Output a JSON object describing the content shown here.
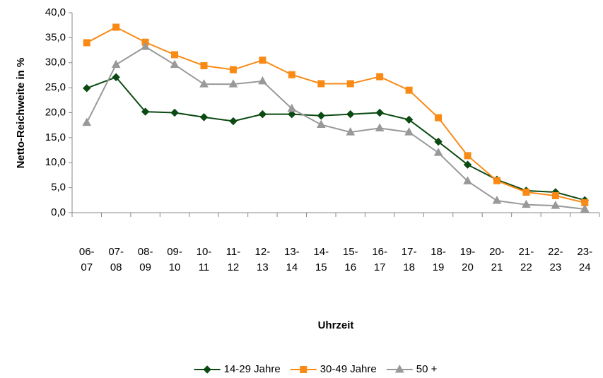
{
  "chart_data": {
    "type": "line",
    "x_label": "Uhrzeit",
    "y_label": "Netto-Reichweite in %",
    "categories": [
      "06-07",
      "07-08",
      "08-09",
      "09-10",
      "10-11",
      "11-12",
      "12-13",
      "13-14",
      "14-15",
      "15-16",
      "16-17",
      "17-18",
      "18-19",
      "19-20",
      "20-21",
      "21-22",
      "22-23",
      "23-24"
    ],
    "series": [
      {
        "name": "14-29 Jahre",
        "color": "#0b4a12",
        "marker": "diamond",
        "values": [
          24.9,
          27.1,
          20.2,
          20.0,
          19.1,
          18.3,
          19.7,
          19.7,
          19.4,
          19.7,
          20.0,
          18.6,
          14.2,
          9.6,
          6.6,
          4.4,
          4.1,
          2.5
        ]
      },
      {
        "name": "30-49 Jahre",
        "color": "#f98a16",
        "marker": "square",
        "values": [
          34.0,
          37.1,
          34.1,
          31.6,
          29.4,
          28.6,
          30.5,
          27.6,
          25.8,
          25.8,
          27.2,
          24.5,
          19.0,
          11.4,
          6.4,
          4.1,
          3.4,
          2.0
        ]
      },
      {
        "name": "50 +",
        "color": "#999999",
        "marker": "triangle",
        "values": [
          18.0,
          29.6,
          33.2,
          29.6,
          25.7,
          25.7,
          26.3,
          20.8,
          17.6,
          16.1,
          16.9,
          16.1,
          12.0,
          6.3,
          2.4,
          1.6,
          1.4,
          0.7
        ]
      }
    ],
    "ylim": [
      0,
      40
    ],
    "yticks": [
      {
        "value": 0,
        "label": "0,0"
      },
      {
        "value": 5,
        "label": "5,0"
      },
      {
        "value": 10,
        "label": "10,0"
      },
      {
        "value": 15,
        "label": "15,0"
      },
      {
        "value": 20,
        "label": "20,0"
      },
      {
        "value": 25,
        "label": "25,0"
      },
      {
        "value": 30,
        "label": "30,0"
      },
      {
        "value": 35,
        "label": "35,0"
      },
      {
        "value": 40,
        "label": "40,0"
      }
    ],
    "grid": false,
    "legend": "bottom"
  }
}
